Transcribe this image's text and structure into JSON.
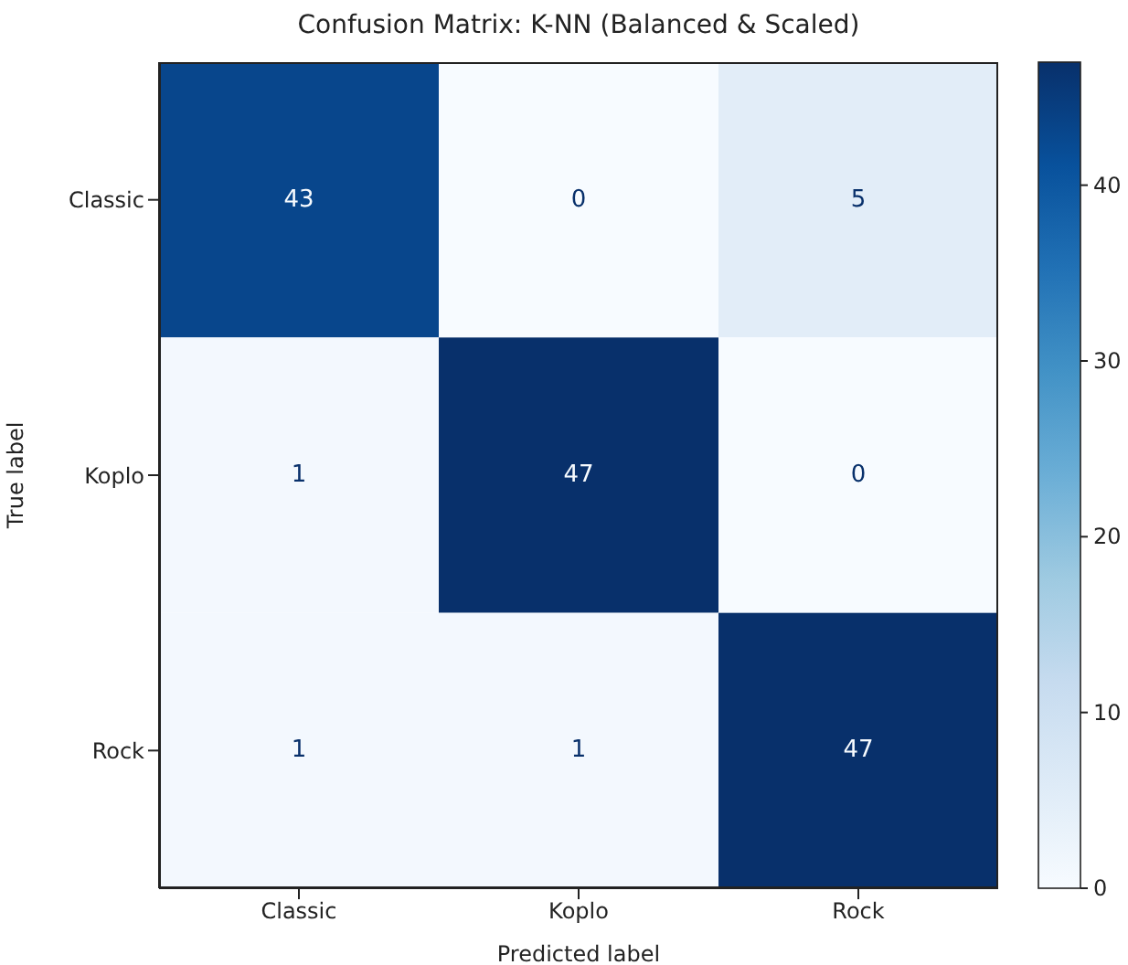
{
  "chart_data": {
    "type": "heatmap",
    "title": "Confusion Matrix: K-NN (Balanced & Scaled)",
    "xlabel": "Predicted label",
    "ylabel": "True label",
    "categories": [
      "Classic",
      "Koplo",
      "Rock"
    ],
    "y_categories": [
      "Classic",
      "Koplo",
      "Rock"
    ],
    "cells": [
      [
        43,
        0,
        5
      ],
      [
        1,
        47,
        0
      ],
      [
        1,
        1,
        47
      ]
    ],
    "data_labels": true,
    "clim": [
      0,
      47
    ],
    "cticks": [
      0,
      10,
      20,
      30,
      40
    ]
  }
}
